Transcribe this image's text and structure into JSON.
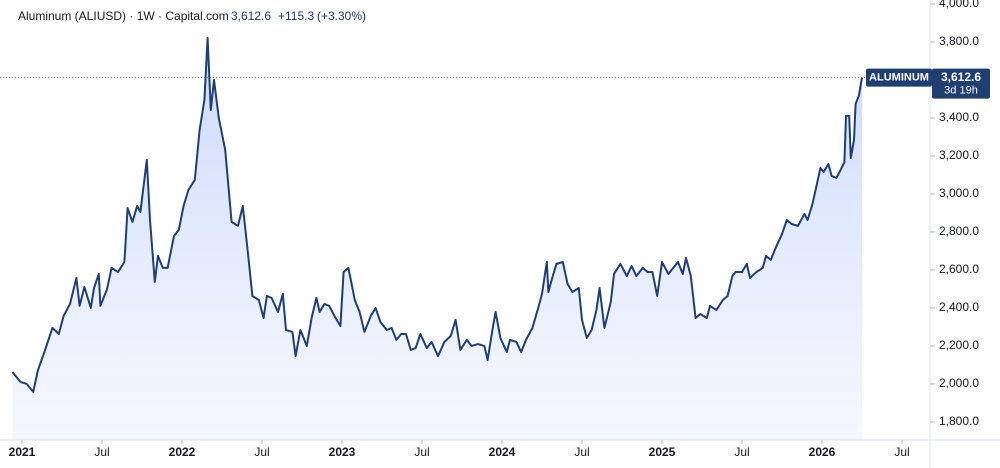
{
  "chart_data": {
    "type": "area-line",
    "title": "Aluminum (ALIUSD) · 1W · Capital.com",
    "last_price_label": "3,612.6",
    "change_label": "+115.3",
    "change_pct_label": "(+3.30%)",
    "countdown": "3d 19h",
    "x": [
      2020.94,
      2020.99,
      2021.03,
      2021.07,
      2021.1,
      2021.14,
      2021.19,
      2021.23,
      2021.26,
      2021.3,
      2021.34,
      2021.36,
      2021.39,
      2021.43,
      2021.45,
      2021.48,
      2021.49,
      2021.53,
      2021.56,
      2021.6,
      2021.64,
      2021.66,
      2021.69,
      2021.72,
      2021.74,
      2021.78,
      2021.8,
      2021.83,
      2021.85,
      2021.88,
      2021.91,
      2021.95,
      2021.98,
      2022.01,
      2022.04,
      2022.08,
      2022.11,
      2022.14,
      2022.16,
      2022.18,
      2022.2,
      2022.23,
      2022.27,
      2022.31,
      2022.35,
      2022.38,
      2022.41,
      2022.44,
      2022.48,
      2022.51,
      2022.53,
      2022.56,
      2022.6,
      2022.63,
      2022.65,
      2022.69,
      2022.71,
      2022.74,
      2022.78,
      2022.81,
      2022.84,
      2022.86,
      2022.89,
      2022.92,
      2022.96,
      2022.99,
      2023.01,
      2023.04,
      2023.08,
      2023.11,
      2023.14,
      2023.18,
      2023.21,
      2023.24,
      2023.28,
      2023.31,
      2023.34,
      2023.37,
      2023.4,
      2023.43,
      2023.46,
      2023.49,
      2023.53,
      2023.56,
      2023.6,
      2023.64,
      2023.68,
      2023.71,
      2023.74,
      2023.78,
      2023.81,
      2023.85,
      2023.89,
      2023.91,
      2023.94,
      2023.96,
      2023.99,
      2024.03,
      2024.05,
      2024.09,
      2024.12,
      2024.15,
      2024.19,
      2024.23,
      2024.25,
      2024.28,
      2024.29,
      2024.31,
      2024.34,
      2024.38,
      2024.41,
      2024.44,
      2024.48,
      2024.5,
      2024.53,
      2024.56,
      2024.59,
      2024.61,
      2024.64,
      2024.68,
      2024.7,
      2024.74,
      2024.78,
      2024.81,
      2024.84,
      2024.88,
      2024.91,
      2024.94,
      2024.97,
      2025.0,
      2025.04,
      2025.07,
      2025.1,
      2025.13,
      2025.15,
      2025.18,
      2025.21,
      2025.24,
      2025.28,
      2025.3,
      2025.34,
      2025.38,
      2025.41,
      2025.44,
      2025.46,
      2025.5,
      2025.53,
      2025.55,
      2025.59,
      2025.63,
      2025.65,
      2025.68,
      2025.71,
      2025.75,
      2025.78,
      2025.81,
      2025.85,
      2025.89,
      2025.91,
      2025.94,
      2025.96,
      2025.99,
      2026.01,
      2026.04,
      2026.06,
      2026.09,
      2026.11,
      2026.14,
      2026.15,
      2026.17,
      2026.18,
      2026.2,
      2026.21,
      2026.23,
      2026.25
    ],
    "series": [
      {
        "name": "ALUMINUM",
        "color": "#1f3f73",
        "values": [
          2063,
          2011,
          2000,
          1958,
          2074,
          2168,
          2295,
          2263,
          2358,
          2421,
          2558,
          2411,
          2511,
          2400,
          2505,
          2579,
          2411,
          2495,
          2611,
          2589,
          2642,
          2926,
          2853,
          2937,
          2905,
          3179,
          2863,
          2537,
          2674,
          2611,
          2611,
          2779,
          2811,
          2937,
          3021,
          3074,
          3337,
          3495,
          3821,
          3442,
          3600,
          3400,
          3232,
          2853,
          2832,
          2937,
          2705,
          2463,
          2442,
          2347,
          2463,
          2453,
          2379,
          2474,
          2284,
          2274,
          2147,
          2284,
          2200,
          2347,
          2453,
          2379,
          2421,
          2411,
          2347,
          2305,
          2589,
          2611,
          2442,
          2379,
          2274,
          2358,
          2400,
          2326,
          2284,
          2295,
          2232,
          2263,
          2263,
          2179,
          2189,
          2263,
          2189,
          2221,
          2147,
          2221,
          2253,
          2337,
          2179,
          2232,
          2200,
          2210,
          2200,
          2126,
          2284,
          2379,
          2242,
          2168,
          2232,
          2221,
          2168,
          2232,
          2295,
          2411,
          2474,
          2642,
          2484,
          2547,
          2632,
          2642,
          2526,
          2484,
          2505,
          2337,
          2242,
          2284,
          2389,
          2505,
          2295,
          2432,
          2579,
          2632,
          2568,
          2621,
          2568,
          2611,
          2589,
          2589,
          2463,
          2642,
          2579,
          2611,
          2642,
          2579,
          2663,
          2568,
          2347,
          2368,
          2347,
          2411,
          2389,
          2442,
          2463,
          2568,
          2589,
          2589,
          2632,
          2558,
          2589,
          2611,
          2674,
          2653,
          2716,
          2789,
          2863,
          2842,
          2832,
          2895,
          2863,
          2947,
          3021,
          3137,
          3116,
          3158,
          3095,
          3084,
          3116,
          3168,
          3411,
          3411,
          3189,
          3284,
          3474,
          3516,
          3612.6
        ]
      }
    ],
    "xlim": [
      2020.8625,
      2026.675
    ],
    "xticks": [
      2021,
      {
        "value": 2021.5,
        "label": "Jul"
      },
      2022,
      {
        "value": 2022.5,
        "label": "Jul"
      },
      2023,
      {
        "value": 2023.5,
        "label": "Jul"
      },
      2024,
      {
        "value": 2024.5,
        "label": "Jul"
      },
      2025,
      {
        "value": 2025.5,
        "label": "Jul"
      },
      2026,
      {
        "value": 2026.5,
        "label": "Jul"
      }
    ],
    "ylim": [
      1705,
      4021
    ],
    "yticks": [
      {
        "value": 1800,
        "label": "1,800.0"
      },
      {
        "value": 2000,
        "label": "2,000.0"
      },
      {
        "value": 2200,
        "label": "2,200.0"
      },
      {
        "value": 2400,
        "label": "2,400.0"
      },
      {
        "value": 2600,
        "label": "2,600.0"
      },
      {
        "value": 2800,
        "label": "2,800.0"
      },
      {
        "value": 3000,
        "label": "3,000.0"
      },
      {
        "value": 3200,
        "label": "3,200.0"
      },
      {
        "value": 3400,
        "label": "3,400.0"
      },
      {
        "value": 3600,
        "label": "3,600.0"
      },
      {
        "value": 3800,
        "label": "3,800.0"
      },
      {
        "value": 4000,
        "label": "4,000.0"
      }
    ],
    "grid": false
  }
}
